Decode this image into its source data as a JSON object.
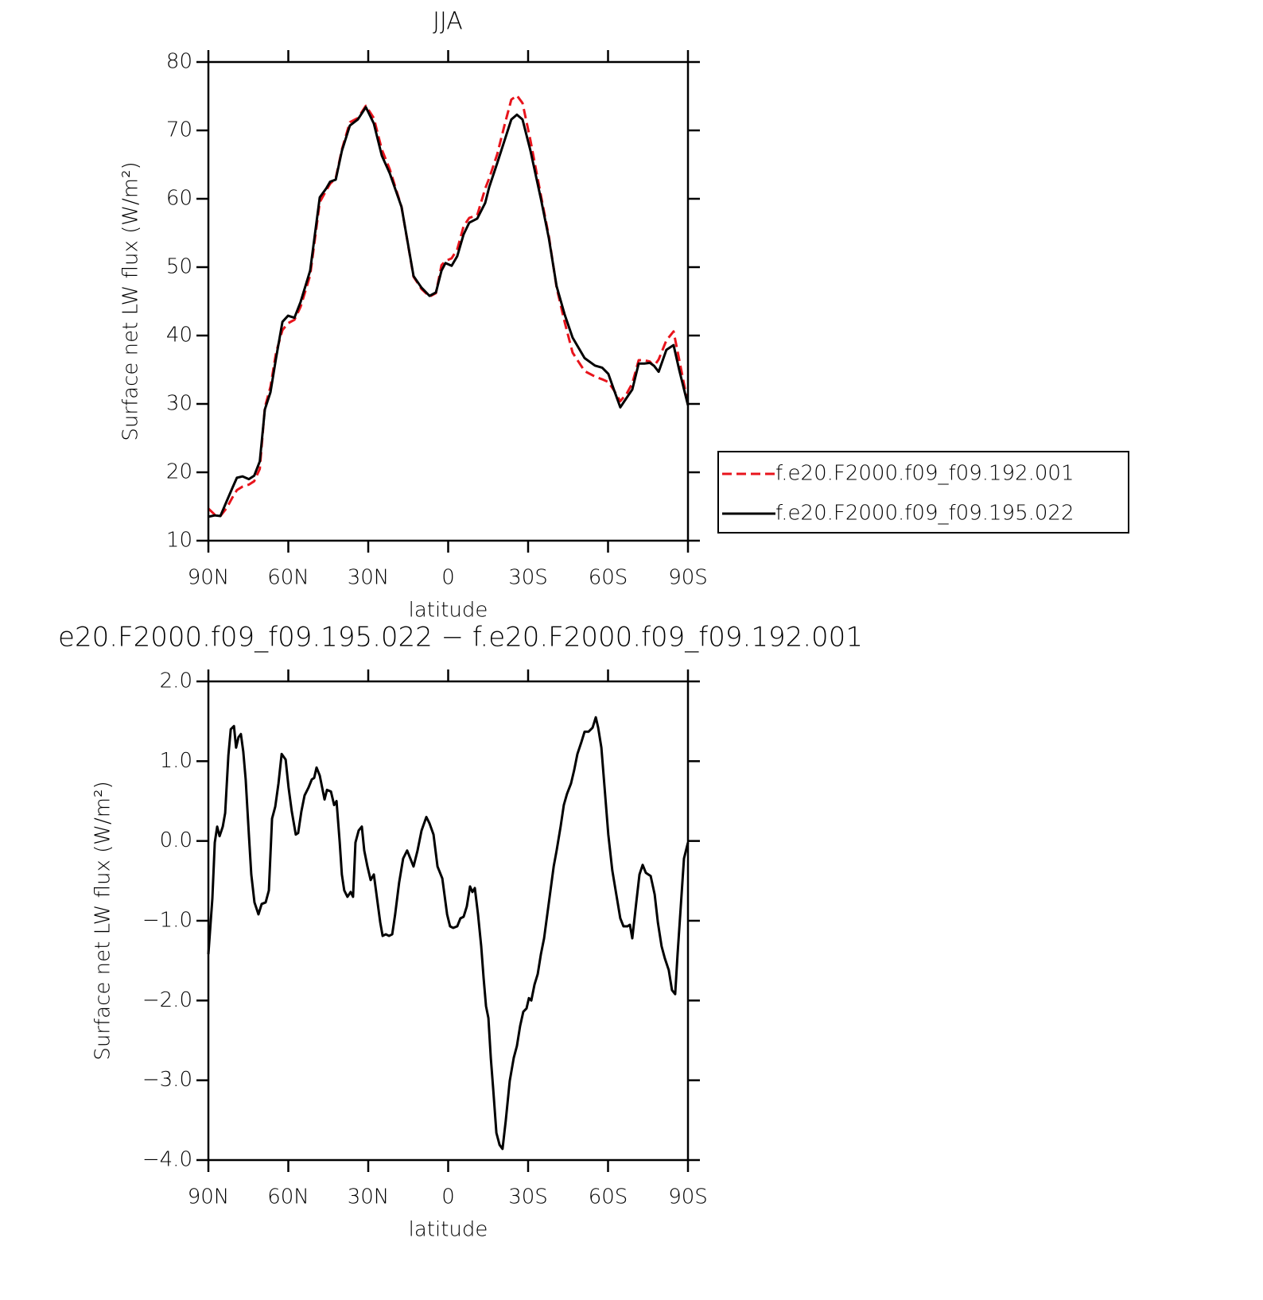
{
  "chart_data": [
    {
      "type": "line",
      "title": "JJA",
      "xlabel": "latitude",
      "ylabel": "Surface net LW flux (W/m²)",
      "x": [
        90,
        87.6,
        85.5,
        83.1,
        81,
        79.3,
        77.2,
        74.8,
        72.8,
        70.7,
        68.8,
        66.7,
        64.6,
        62.2,
        60.1,
        57.7,
        55.4,
        51.8,
        48.2,
        45.8,
        44.3,
        42.2,
        39.9,
        36.9,
        33.9,
        30.9,
        27.9,
        24.9,
        21.9,
        17.5,
        13,
        10,
        7,
        4.6,
        2.5,
        1,
        -1.3,
        -3.4,
        -5.8,
        -7.9,
        -10.9,
        -13.9,
        -15.4,
        -18.4,
        -21.3,
        -23.7,
        -25.8,
        -27.9,
        -30.9,
        -34.8,
        -37.8,
        -40.7,
        -43.7,
        -46.7,
        -51.2,
        -55.1,
        -57.8,
        -60.1,
        -62.2,
        -64.6,
        -67,
        -69.1,
        -71.5,
        -73.6,
        -75.7,
        -77.2,
        -79,
        -81.9,
        -84.6,
        -86.7,
        -90
      ],
      "series": [
        {
          "name": "f.e20.F2000.f09_f09.192.001",
          "color": "#e8141c",
          "style": "dashed",
          "values": [
            14.7,
            13.8,
            13.6,
            14.8,
            16.3,
            17.4,
            17.9,
            18.2,
            18.7,
            20.5,
            29.5,
            32.5,
            37.5,
            40.8,
            41.8,
            42.3,
            44.2,
            48.8,
            59.5,
            61.2,
            62.2,
            63,
            67.2,
            71.2,
            71.8,
            73.6,
            71.8,
            67.2,
            64.3,
            58.8,
            48.6,
            46.8,
            45.7,
            46.2,
            50.3,
            50.9,
            51.3,
            52.6,
            56,
            57.2,
            57.6,
            61.5,
            63,
            66.5,
            71,
            74.5,
            75.1,
            74,
            68.5,
            60.5,
            54.5,
            47,
            42,
            37.5,
            34.8,
            34,
            33.6,
            33.2,
            32,
            30.4,
            31.5,
            33,
            36.4,
            36.4,
            36.2,
            35.5,
            36.5,
            39.3,
            40.6,
            36.5,
            30
          ]
        },
        {
          "name": "f.e20.F2000.f09_f09.195.022",
          "color": "#000000",
          "style": "solid",
          "values": [
            13.5,
            13.7,
            13.6,
            15.8,
            17.7,
            19.2,
            19.4,
            19,
            19.5,
            21.6,
            29.2,
            31.7,
            36.7,
            42,
            42.9,
            42.6,
            44.9,
            49.5,
            60.2,
            61.5,
            62.5,
            62.8,
            67,
            70.7,
            71.6,
            73.4,
            71,
            66.3,
            63.7,
            58.8,
            48.7,
            47,
            45.8,
            46.3,
            49.5,
            50.6,
            50.2,
            51.6,
            54.8,
            56.5,
            57.1,
            59.4,
            61.7,
            65.2,
            68.7,
            71.6,
            72.3,
            71.6,
            67,
            60,
            54.2,
            47.2,
            43.1,
            39.7,
            36.7,
            35.6,
            35.3,
            34.4,
            32.1,
            29.5,
            30.9,
            32.1,
            35.9,
            35.9,
            36,
            35.6,
            34.7,
            37.9,
            38.6,
            35,
            29.8
          ]
        }
      ],
      "xlim": [
        90,
        -90
      ],
      "xticks": [
        {
          "value": 90,
          "label": "90N"
        },
        {
          "value": 60,
          "label": "60N"
        },
        {
          "value": 30,
          "label": "30N"
        },
        0,
        {
          "value": -30,
          "label": "30S"
        },
        {
          "value": -60,
          "label": "60S"
        },
        {
          "value": -90,
          "label": "90S"
        }
      ],
      "ylim": [
        10,
        80
      ],
      "yticks": [
        10,
        20,
        30,
        40,
        50,
        60,
        70,
        80
      ],
      "legend": "right"
    },
    {
      "type": "line",
      "title": "e20.F2000.f09_f09.195.022 − f.e20.F2000.f09_f09.192.001",
      "xlabel": "latitude",
      "ylabel": "Surface net LW flux (W/m²)",
      "x": [
        90,
        88.5,
        87.6,
        86.7,
        85.8,
        84.6,
        83.7,
        82.5,
        81.6,
        80.4,
        79.6,
        78.7,
        77.8,
        76.9,
        76,
        74.8,
        73.9,
        72.7,
        71.2,
        70,
        68.5,
        67.3,
        66.1,
        64.9,
        63.7,
        62.5,
        61,
        59.9,
        58.7,
        57.2,
        56.3,
        55.1,
        53.9,
        52.4,
        51.2,
        50.3,
        49.4,
        48.2,
        47.3,
        46.4,
        45.5,
        44,
        42.8,
        41.9,
        40.7,
        39.9,
        39,
        37.8,
        36.6,
        35.7,
        34.8,
        33.6,
        32.4,
        31.5,
        30.3,
        29.1,
        27.9,
        26.7,
        25.5,
        24.6,
        23.4,
        22.2,
        21,
        19.9,
        18.4,
        16.9,
        15.4,
        14.2,
        13,
        11.5,
        10,
        8.2,
        7,
        5.5,
        4,
        2.2,
        0.4,
        -0.7,
        -1.9,
        -3.4,
        -4.6,
        -5.8,
        -7,
        -8.2,
        -9.1,
        -10,
        -11.2,
        -12.4,
        -13.3,
        -14.2,
        -15.1,
        -16,
        -16.9,
        -18.1,
        -19.3,
        -20.4,
        -21.6,
        -23.1,
        -24.6,
        -25.8,
        -27,
        -28.2,
        -29.4,
        -30.3,
        -31.2,
        -32.4,
        -33.6,
        -34.8,
        -36,
        -37.2,
        -38.4,
        -39.6,
        -40.7,
        -42.2,
        -43.4,
        -44.6,
        -46.1,
        -47.3,
        -48.5,
        -50,
        -51.2,
        -52.7,
        -54.2,
        -55.4,
        -56.3,
        -57.5,
        -58.7,
        -60.1,
        -61.6,
        -63.1,
        -64.6,
        -65.8,
        -67.3,
        -68.2,
        -69.1,
        -70.6,
        -71.8,
        -73,
        -74.2,
        -76,
        -77.5,
        -78.7,
        -80.1,
        -81.3,
        -82.8,
        -84,
        -85.2,
        -86.1,
        -87.3,
        -88.5,
        -90
      ],
      "series": [
        {
          "color": "#000000",
          "style": "solid",
          "values": [
            -1.42,
            -0.72,
            -0.02,
            0.18,
            0.06,
            0.18,
            0.35,
            1.07,
            1.4,
            1.44,
            1.17,
            1.3,
            1.34,
            1.12,
            0.77,
            0.08,
            -0.42,
            -0.77,
            -0.92,
            -0.79,
            -0.77,
            -0.62,
            0.28,
            0.43,
            0.72,
            1.09,
            1.02,
            0.67,
            0.37,
            0.08,
            0.1,
            0.37,
            0.57,
            0.67,
            0.77,
            0.79,
            0.92,
            0.82,
            0.67,
            0.52,
            0.64,
            0.62,
            0.45,
            0.5,
            -0.02,
            -0.42,
            -0.62,
            -0.7,
            -0.64,
            -0.7,
            -0.02,
            0.13,
            0.18,
            -0.12,
            -0.32,
            -0.49,
            -0.42,
            -0.72,
            -1.02,
            -1.19,
            -1.17,
            -1.19,
            -1.17,
            -0.92,
            -0.52,
            -0.22,
            -0.12,
            -0.22,
            -0.32,
            -0.12,
            0.13,
            0.3,
            0.22,
            0.08,
            -0.32,
            -0.47,
            -0.92,
            -1.07,
            -1.09,
            -1.07,
            -0.97,
            -0.95,
            -0.82,
            -0.57,
            -0.64,
            -0.59,
            -0.92,
            -1.32,
            -1.72,
            -2.07,
            -2.22,
            -2.72,
            -3.11,
            -3.66,
            -3.81,
            -3.86,
            -3.51,
            -3.01,
            -2.72,
            -2.57,
            -2.32,
            -2.14,
            -2.1,
            -1.97,
            -2.0,
            -1.8,
            -1.67,
            -1.42,
            -1.22,
            -0.92,
            -0.62,
            -0.32,
            -0.12,
            0.18,
            0.45,
            0.59,
            0.72,
            0.89,
            1.09,
            1.24,
            1.37,
            1.37,
            1.42,
            1.55,
            1.42,
            1.17,
            0.67,
            0.08,
            -0.37,
            -0.67,
            -0.97,
            -1.07,
            -1.07,
            -1.05,
            -1.22,
            -0.77,
            -0.42,
            -0.3,
            -0.4,
            -0.44,
            -0.67,
            -1.02,
            -1.32,
            -1.47,
            -1.62,
            -1.87,
            -1.92,
            -1.42,
            -0.82,
            -0.22,
            -0.02
          ]
        }
      ],
      "xlim": [
        90,
        -90
      ],
      "xticks": [
        {
          "value": 90,
          "label": "90N"
        },
        {
          "value": 60,
          "label": "60N"
        },
        {
          "value": 30,
          "label": "30N"
        },
        0,
        {
          "value": -30,
          "label": "30S"
        },
        {
          "value": -60,
          "label": "60S"
        },
        {
          "value": -90,
          "label": "90S"
        }
      ],
      "ylim": [
        -4,
        2
      ],
      "yticks": [
        {
          "value": 2,
          "label": "2.0"
        },
        {
          "value": 1,
          "label": "1.0"
        },
        {
          "value": 0,
          "label": "0.0"
        },
        {
          "value": -1,
          "label": "−1.0"
        },
        {
          "value": -2,
          "label": "−2.0"
        },
        {
          "value": -3,
          "label": "−3.0"
        },
        {
          "value": -4,
          "label": "−4.0"
        }
      ]
    }
  ]
}
